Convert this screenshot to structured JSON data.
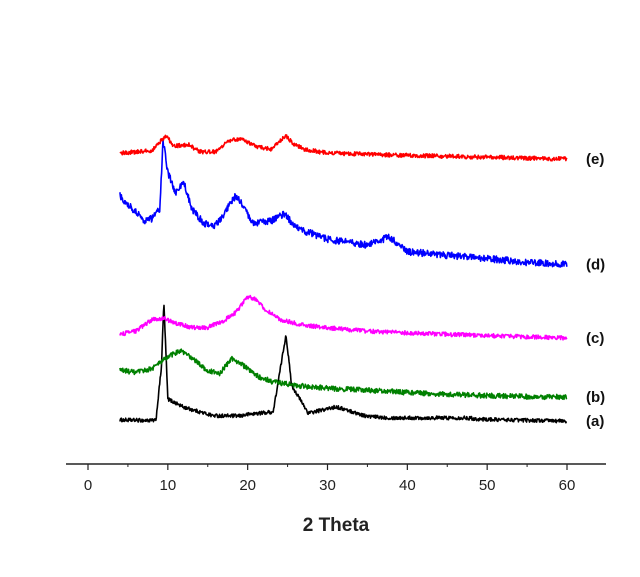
{
  "chart_data": {
    "type": "line",
    "xlabel": "2 Theta",
    "ylabel": "",
    "xlim": [
      -3,
      65
    ],
    "xticks": [
      0,
      10,
      20,
      30,
      40,
      50,
      60
    ],
    "y_axis_visible": false,
    "grid": false,
    "x_range_data": [
      4,
      60
    ],
    "series": [
      {
        "name": "(a)",
        "color": "#000000",
        "baseline_pct": 0.08,
        "noise_pct": 0.4,
        "points": [
          [
            4,
            0.45
          ],
          [
            8.5,
            0.3
          ],
          [
            9.2,
            12
          ],
          [
            9.5,
            26
          ],
          [
            10,
            5
          ],
          [
            12,
            3.2
          ],
          [
            15.6,
            1.4
          ],
          [
            19,
            1.3
          ],
          [
            20.2,
            1.7
          ],
          [
            23.2,
            2.2
          ],
          [
            24.8,
            19
          ],
          [
            25.5,
            8
          ],
          [
            27.6,
            1.9
          ],
          [
            31.1,
            3.3
          ],
          [
            35,
            1.2
          ],
          [
            38,
            0.9
          ],
          [
            41.5,
            0.9
          ],
          [
            47.5,
            0.9
          ],
          [
            49,
            0.6
          ],
          [
            60,
            0.2
          ]
        ]
      },
      {
        "name": "(b)",
        "color": "#008000",
        "baseline_pct": 0.15,
        "noise_pct": 0.55,
        "points": [
          [
            4,
            6
          ],
          [
            6,
            5.4
          ],
          [
            8,
            6.3
          ],
          [
            10,
            8.8
          ],
          [
            11.5,
            10.2
          ],
          [
            13,
            8.6
          ],
          [
            15,
            5.8
          ],
          [
            16.5,
            5.2
          ],
          [
            18,
            8.5
          ],
          [
            19,
            7.6
          ],
          [
            21,
            4.8
          ],
          [
            23,
            3.5
          ],
          [
            26,
            2.6
          ],
          [
            30,
            2
          ],
          [
            35,
            1.6
          ],
          [
            40,
            1.1
          ],
          [
            45,
            0.7
          ],
          [
            50,
            0.4
          ],
          [
            55,
            0.2
          ],
          [
            60,
            0.1
          ]
        ]
      },
      {
        "name": "(c)",
        "color": "#ff00ff",
        "baseline_pct": 0.32,
        "noise_pct": 0.45,
        "points": [
          [
            4,
            0.8
          ],
          [
            6,
            1.5
          ],
          [
            8,
            4
          ],
          [
            9.5,
            4.3
          ],
          [
            11,
            3.2
          ],
          [
            13,
            2.3
          ],
          [
            15,
            2.3
          ],
          [
            17,
            3.8
          ],
          [
            18.5,
            5.5
          ],
          [
            20,
            9
          ],
          [
            21,
            8.5
          ],
          [
            22,
            6.5
          ],
          [
            24,
            4
          ],
          [
            27,
            2.8
          ],
          [
            30,
            2.2
          ],
          [
            35,
            1.5
          ],
          [
            40,
            1.1
          ],
          [
            45,
            0.8
          ],
          [
            50,
            0.5
          ],
          [
            60,
            0
          ]
        ]
      },
      {
        "name": "(d)",
        "color": "#0000ff",
        "baseline_pct": 0.53,
        "noise_pct": 0.75,
        "points": [
          [
            4,
            15
          ],
          [
            5,
            13
          ],
          [
            6,
            11.5
          ],
          [
            7,
            9.5
          ],
          [
            8,
            10
          ],
          [
            9,
            12
          ],
          [
            9.4,
            27
          ],
          [
            10,
            20
          ],
          [
            11,
            15.5
          ],
          [
            12,
            18
          ],
          [
            13,
            12
          ],
          [
            14.5,
            9
          ],
          [
            16,
            8.5
          ],
          [
            17,
            11
          ],
          [
            18.5,
            15
          ],
          [
            19.5,
            12.5
          ],
          [
            20.5,
            9
          ],
          [
            23,
            9.5
          ],
          [
            24.7,
            11
          ],
          [
            26,
            8
          ],
          [
            30,
            5.5
          ],
          [
            35,
            4.2
          ],
          [
            37.8,
            6
          ],
          [
            40,
            2.8
          ],
          [
            45,
            2
          ],
          [
            50,
            1.3
          ],
          [
            55,
            0.5
          ],
          [
            60,
            0
          ]
        ]
      },
      {
        "name": "(e)",
        "color": "#ff0000",
        "baseline_pct": 0.83,
        "noise_pct": 0.45,
        "points": [
          [
            4,
            1.4
          ],
          [
            8,
            1.9
          ],
          [
            9.2,
            4.2
          ],
          [
            9.9,
            5.3
          ],
          [
            10.6,
            2.8
          ],
          [
            12.5,
            3.3
          ],
          [
            14,
            1.7
          ],
          [
            16,
            1.7
          ],
          [
            17.5,
            3.9
          ],
          [
            18.5,
            4.4
          ],
          [
            19.6,
            4.2
          ],
          [
            21,
            2.9
          ],
          [
            23,
            2.2
          ],
          [
            24.8,
            5.2
          ],
          [
            25.6,
            3.6
          ],
          [
            27,
            2.2
          ],
          [
            30,
            1.4
          ],
          [
            40,
            0.9
          ],
          [
            50,
            0.5
          ],
          [
            60,
            0.1
          ]
        ]
      }
    ]
  }
}
